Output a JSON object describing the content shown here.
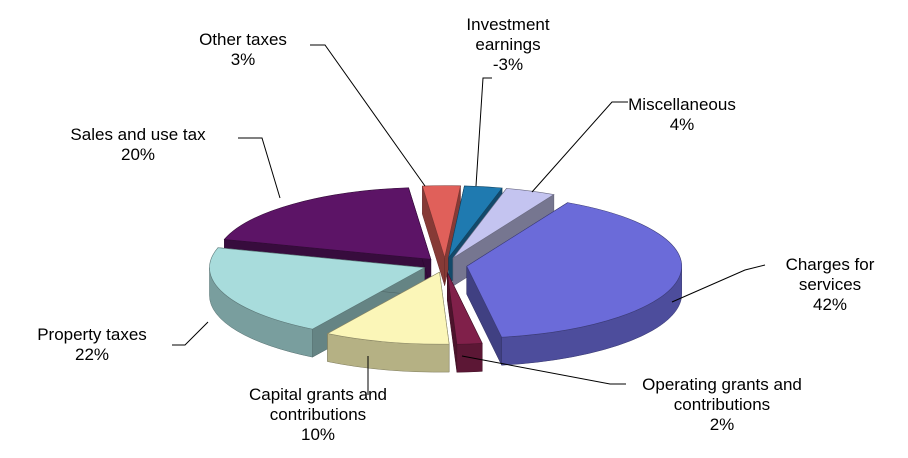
{
  "chart_data": {
    "type": "pie",
    "categories": [
      "Charges for services",
      "Operating grants and contributions",
      "Capital grants and contributions",
      "Property taxes",
      "Sales and use tax",
      "Other taxes",
      "Investment earnings",
      "Miscellaneous"
    ],
    "values": [
      42,
      2,
      10,
      22,
      20,
      3,
      -3,
      4
    ],
    "value_labels": [
      "42%",
      "2%",
      "10%",
      "22%",
      "20%",
      "3%",
      "-3%",
      "4%"
    ],
    "colors": [
      "#6b6bd9",
      "#80204a",
      "#fbf6b8",
      "#a8dcdc",
      "#5c1466",
      "#e0605a",
      "#1f7ab0",
      "#c4c4f0"
    ]
  }
}
